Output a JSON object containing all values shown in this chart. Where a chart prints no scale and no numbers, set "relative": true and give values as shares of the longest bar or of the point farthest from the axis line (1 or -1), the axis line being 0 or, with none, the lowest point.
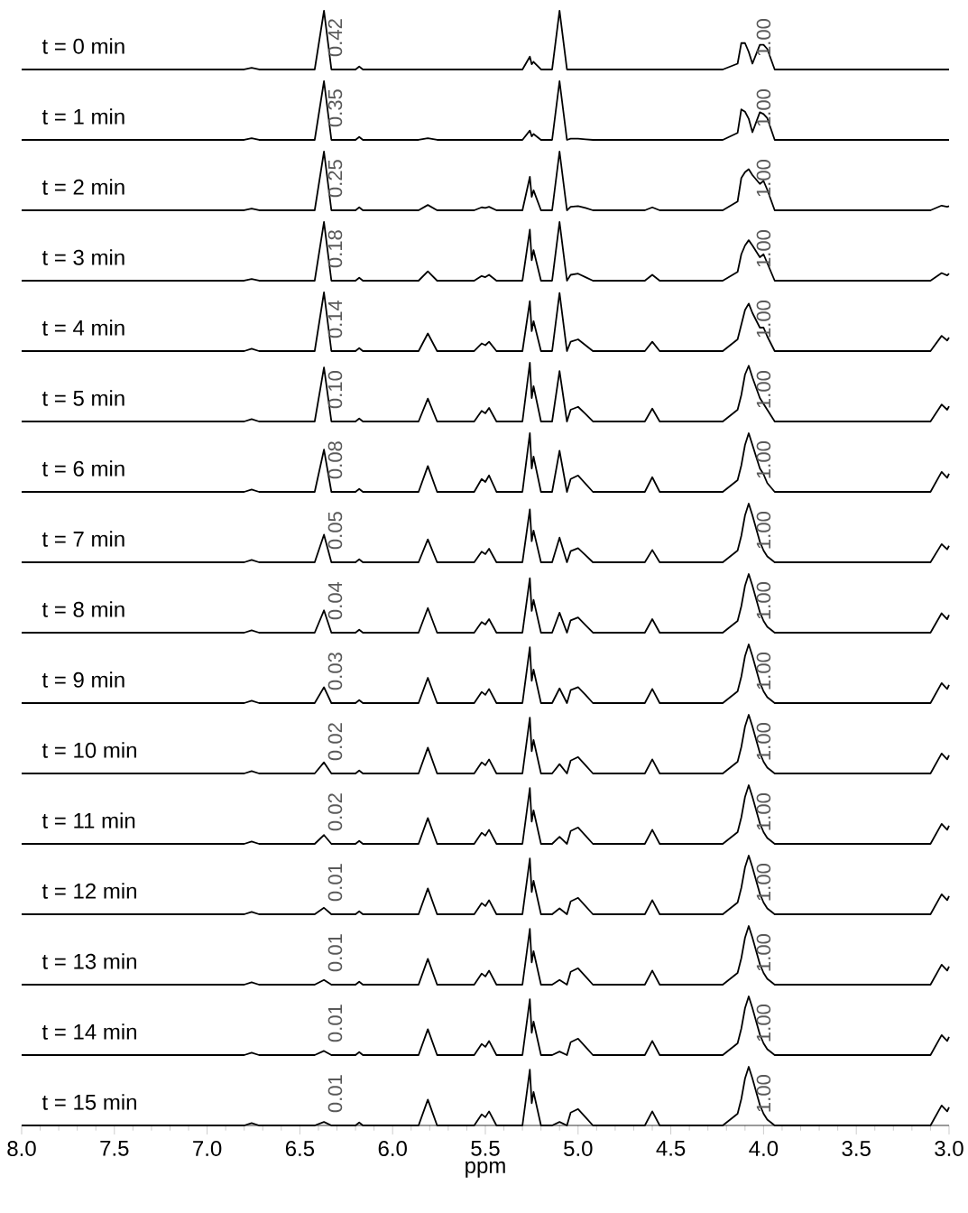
{
  "chart_data": [
    {
      "type": "line",
      "relative": true,
      "tick_labels": false,
      "xlim": [
        8.0,
        3.0
      ],
      "x": [
        8.0,
        6.8,
        6.76,
        6.72,
        6.42,
        6.37,
        6.33,
        6.2,
        6.18,
        6.16,
        5.86,
        5.81,
        5.76,
        5.56,
        5.52,
        5.5,
        5.48,
        5.44,
        5.3,
        5.26,
        5.25,
        5.24,
        5.2,
        5.14,
        5.1,
        5.06,
        5.04,
        5.0,
        4.96,
        4.92,
        4.64,
        4.6,
        4.56,
        4.22,
        4.14,
        4.12,
        4.1,
        4.08,
        4.06,
        4.02,
        4.0,
        3.98,
        3.94,
        3.1,
        3.04,
        3.01,
        3.0
      ],
      "series": [
        {
          "color": "#000000",
          "values": [
            0,
            0,
            0.03,
            0,
            0,
            1,
            0,
            0,
            0.05,
            0,
            0,
            0,
            0,
            0,
            0,
            0,
            0,
            0,
            0,
            0.22,
            0.09,
            0.13,
            0,
            0,
            1,
            0,
            0,
            0,
            0,
            0,
            0,
            0,
            0,
            0,
            0.1,
            0.45,
            0.45,
            0.3,
            0.1,
            0.42,
            0.42,
            0.35,
            0,
            0,
            0,
            0,
            0
          ]
        }
      ],
      "annotations": [
        "t = 0 min",
        "0.42",
        "1.00"
      ]
    },
    {
      "type": "line",
      "relative": true,
      "tick_labels": false,
      "xlim": [
        8.0,
        3.0
      ],
      "x": [
        8.0,
        6.8,
        6.76,
        6.72,
        6.42,
        6.37,
        6.33,
        6.2,
        6.18,
        6.16,
        5.86,
        5.81,
        5.76,
        5.56,
        5.52,
        5.5,
        5.48,
        5.44,
        5.3,
        5.26,
        5.25,
        5.24,
        5.2,
        5.14,
        5.1,
        5.06,
        5.04,
        5.0,
        4.96,
        4.92,
        4.64,
        4.6,
        4.56,
        4.22,
        4.14,
        4.12,
        4.1,
        4.08,
        4.06,
        4.02,
        4.0,
        3.98,
        3.94,
        3.1,
        3.04,
        3.01,
        3.0
      ],
      "series": [
        {
          "color": "#000000",
          "values": [
            0,
            0,
            0.03,
            0,
            0,
            1,
            0,
            0,
            0.05,
            0,
            0,
            0.03,
            0,
            0,
            0,
            0,
            0,
            0,
            0,
            0.16,
            0.06,
            0.1,
            0,
            0,
            1,
            0,
            0.02,
            0.02,
            0.01,
            0,
            0,
            0,
            0,
            0,
            0.12,
            0.52,
            0.48,
            0.36,
            0.13,
            0.47,
            0.44,
            0.37,
            0,
            0,
            0,
            0,
            0
          ]
        }
      ],
      "annotations": [
        "t = 1 min",
        "0.35",
        "1.00"
      ]
    },
    {
      "type": "line",
      "relative": true,
      "tick_labels": false,
      "xlim": [
        8.0,
        3.0
      ],
      "x": [
        8.0,
        6.8,
        6.76,
        6.72,
        6.42,
        6.37,
        6.33,
        6.2,
        6.18,
        6.16,
        5.86,
        5.81,
        5.76,
        5.56,
        5.52,
        5.5,
        5.48,
        5.44,
        5.3,
        5.26,
        5.25,
        5.24,
        5.2,
        5.14,
        5.1,
        5.06,
        5.04,
        5.0,
        4.96,
        4.92,
        4.64,
        4.6,
        4.56,
        4.22,
        4.14,
        4.12,
        4.1,
        4.08,
        4.06,
        4.02,
        4.0,
        3.98,
        3.94,
        3.1,
        3.04,
        3.01,
        3.0
      ],
      "series": [
        {
          "color": "#000000",
          "values": [
            0,
            0,
            0.03,
            0,
            0,
            1,
            0,
            0,
            0.05,
            0,
            0,
            0.09,
            0,
            0,
            0.05,
            0.04,
            0.06,
            0,
            0,
            0.57,
            0.23,
            0.34,
            0,
            0,
            1,
            0,
            0.06,
            0.07,
            0.04,
            0,
            0,
            0.05,
            0,
            0,
            0.15,
            0.55,
            0.65,
            0.7,
            0.6,
            0.45,
            0.5,
            0.35,
            0,
            0,
            0.08,
            0.06,
            0.07
          ]
        }
      ],
      "annotations": [
        "t = 2 min",
        "0.25",
        "1.00"
      ]
    },
    {
      "type": "line",
      "relative": true,
      "tick_labels": false,
      "xlim": [
        8.0,
        3.0
      ],
      "x": [
        8.0,
        6.8,
        6.76,
        6.72,
        6.42,
        6.37,
        6.33,
        6.2,
        6.18,
        6.16,
        5.86,
        5.81,
        5.76,
        5.56,
        5.52,
        5.5,
        5.48,
        5.44,
        5.3,
        5.26,
        5.25,
        5.24,
        5.2,
        5.14,
        5.1,
        5.06,
        5.04,
        5.0,
        4.96,
        4.92,
        4.64,
        4.6,
        4.56,
        4.22,
        4.14,
        4.12,
        4.1,
        4.08,
        4.06,
        4.02,
        4.0,
        3.98,
        3.94,
        3.1,
        3.04,
        3.01,
        3.0
      ],
      "series": [
        {
          "color": "#000000",
          "values": [
            0,
            0,
            0.03,
            0,
            0,
            1,
            0,
            0,
            0.05,
            0,
            0,
            0.16,
            0,
            0,
            0.08,
            0.06,
            0.1,
            0,
            0,
            0.87,
            0.35,
            0.52,
            0,
            0,
            1,
            0,
            0.1,
            0.12,
            0.06,
            0,
            0,
            0.1,
            0,
            0,
            0.15,
            0.45,
            0.6,
            0.69,
            0.6,
            0.4,
            0.45,
            0.3,
            0,
            0,
            0.13,
            0.09,
            0.12
          ]
        }
      ],
      "annotations": [
        "t = 3 min",
        "0.18",
        "1.00"
      ]
    },
    {
      "type": "line",
      "relative": true,
      "tick_labels": false,
      "xlim": [
        8.0,
        3.0
      ],
      "x": [
        8.0,
        6.8,
        6.76,
        6.72,
        6.42,
        6.37,
        6.33,
        6.2,
        6.18,
        6.16,
        5.86,
        5.81,
        5.76,
        5.56,
        5.52,
        5.5,
        5.48,
        5.44,
        5.3,
        5.26,
        5.25,
        5.24,
        5.2,
        5.14,
        5.1,
        5.06,
        5.04,
        5.0,
        4.96,
        4.92,
        4.64,
        4.6,
        4.56,
        4.22,
        4.14,
        4.12,
        4.1,
        4.08,
        4.06,
        4.02,
        4.0,
        3.98,
        3.94,
        3.1,
        3.04,
        3.01,
        3.0
      ],
      "series": [
        {
          "color": "#000000",
          "values": [
            0,
            0,
            0.04,
            0,
            0,
            1,
            0,
            0,
            0.05,
            0,
            0,
            0.3,
            0,
            0,
            0.13,
            0.1,
            0.16,
            0,
            0,
            0.85,
            0.34,
            0.51,
            0,
            0,
            0.99,
            0,
            0.16,
            0.2,
            0.1,
            0,
            0,
            0.16,
            0,
            0,
            0.2,
            0.45,
            0.7,
            0.81,
            0.65,
            0.4,
            0.4,
            0.25,
            0,
            0,
            0.26,
            0.18,
            0.23
          ]
        }
      ],
      "annotations": [
        "t = 4 min",
        "0.14",
        "1.00"
      ]
    },
    {
      "type": "line",
      "relative": true,
      "tick_labels": false,
      "xlim": [
        8.0,
        3.0
      ],
      "x": [
        8.0,
        6.8,
        6.76,
        6.72,
        6.42,
        6.37,
        6.33,
        6.2,
        6.18,
        6.16,
        5.86,
        5.81,
        5.76,
        5.56,
        5.52,
        5.5,
        5.48,
        5.44,
        5.3,
        5.26,
        5.25,
        5.24,
        5.2,
        5.14,
        5.1,
        5.06,
        5.04,
        5.0,
        4.96,
        4.92,
        4.64,
        4.6,
        4.56,
        4.22,
        4.14,
        4.12,
        4.1,
        4.08,
        4.06,
        4.02,
        4.0,
        3.98,
        3.94,
        3.1,
        3.04,
        3.01,
        3.0
      ],
      "series": [
        {
          "color": "#000000",
          "values": [
            0,
            0,
            0.04,
            0,
            0,
            0.92,
            0,
            0,
            0.05,
            0,
            0,
            0.39,
            0,
            0,
            0.18,
            0.14,
            0.23,
            0,
            0,
            1,
            0.4,
            0.6,
            0,
            0,
            0.86,
            0,
            0.2,
            0.25,
            0.13,
            0,
            0,
            0.22,
            0,
            0,
            0.2,
            0.45,
            0.8,
            0.95,
            0.75,
            0.4,
            0.3,
            0.2,
            0,
            0,
            0.29,
            0.2,
            0.26
          ]
        }
      ],
      "annotations": [
        "t = 5 min",
        "0.10",
        "1.00"
      ]
    },
    {
      "type": "line",
      "relative": true,
      "tick_labels": false,
      "xlim": [
        8.0,
        3.0
      ],
      "x": [
        8.0,
        6.8,
        6.76,
        6.72,
        6.42,
        6.37,
        6.33,
        6.2,
        6.18,
        6.16,
        5.86,
        5.81,
        5.76,
        5.56,
        5.52,
        5.5,
        5.48,
        5.44,
        5.3,
        5.26,
        5.25,
        5.24,
        5.2,
        5.14,
        5.1,
        5.06,
        5.04,
        5.0,
        4.96,
        4.92,
        4.64,
        4.6,
        4.56,
        4.22,
        4.14,
        4.12,
        4.1,
        4.08,
        4.06,
        4.02,
        4.0,
        3.98,
        3.94,
        3.1,
        3.04,
        3.01,
        3.0
      ],
      "series": [
        {
          "color": "#000000",
          "values": [
            0,
            0,
            0.04,
            0,
            0,
            0.72,
            0,
            0,
            0.05,
            0,
            0,
            0.44,
            0,
            0,
            0.22,
            0.17,
            0.28,
            0,
            0,
            1,
            0.4,
            0.6,
            0,
            0,
            0.7,
            0,
            0.22,
            0.28,
            0.14,
            0,
            0,
            0.25,
            0,
            0,
            0.2,
            0.45,
            0.8,
            1,
            0.8,
            0.4,
            0.3,
            0.15,
            0,
            0,
            0.34,
            0.24,
            0.31
          ]
        }
      ],
      "annotations": [
        "t = 6 min",
        "0.08",
        "1.00"
      ]
    },
    {
      "type": "line",
      "relative": true,
      "tick_labels": false,
      "xlim": [
        8.0,
        3.0
      ],
      "x": [
        8.0,
        6.8,
        6.76,
        6.72,
        6.42,
        6.37,
        6.33,
        6.2,
        6.18,
        6.16,
        5.86,
        5.81,
        5.76,
        5.56,
        5.52,
        5.5,
        5.48,
        5.44,
        5.3,
        5.26,
        5.25,
        5.24,
        5.2,
        5.14,
        5.1,
        5.06,
        5.04,
        5.0,
        4.96,
        4.92,
        4.64,
        4.6,
        4.56,
        4.22,
        4.14,
        4.12,
        4.1,
        4.08,
        4.06,
        4.02,
        4.0,
        3.98,
        3.94,
        3.1,
        3.04,
        3.01,
        3.0
      ],
      "series": [
        {
          "color": "#000000",
          "values": [
            0,
            0,
            0.04,
            0,
            0,
            0.47,
            0,
            0,
            0.05,
            0,
            0,
            0.39,
            0,
            0,
            0.18,
            0.14,
            0.23,
            0,
            0,
            0.9,
            0.36,
            0.54,
            0,
            0,
            0.42,
            0,
            0.19,
            0.24,
            0.12,
            0,
            0,
            0.21,
            0,
            0,
            0.2,
            0.45,
            0.8,
            1,
            0.8,
            0.35,
            0.2,
            0.1,
            0,
            0,
            0.31,
            0.22,
            0.28
          ]
        }
      ],
      "annotations": [
        "t = 7 min",
        "0.05",
        "1.00"
      ]
    },
    {
      "type": "line",
      "relative": true,
      "tick_labels": false,
      "xlim": [
        8.0,
        3.0
      ],
      "x": [
        8.0,
        6.8,
        6.76,
        6.72,
        6.42,
        6.37,
        6.33,
        6.2,
        6.18,
        6.16,
        5.86,
        5.81,
        5.76,
        5.56,
        5.52,
        5.5,
        5.48,
        5.44,
        5.3,
        5.26,
        5.25,
        5.24,
        5.2,
        5.14,
        5.1,
        5.06,
        5.04,
        5.0,
        4.96,
        4.92,
        4.64,
        4.6,
        4.56,
        4.22,
        4.14,
        4.12,
        4.1,
        4.08,
        4.06,
        4.02,
        4.0,
        3.98,
        3.94,
        3.1,
        3.04,
        3.01,
        3.0
      ],
      "series": [
        {
          "color": "#000000",
          "values": [
            0,
            0,
            0.04,
            0,
            0,
            0.38,
            0,
            0,
            0.05,
            0,
            0,
            0.42,
            0,
            0,
            0.18,
            0.14,
            0.23,
            0,
            0,
            0.93,
            0.37,
            0.56,
            0,
            0,
            0.34,
            0,
            0.21,
            0.26,
            0.13,
            0,
            0,
            0.23,
            0,
            0,
            0.2,
            0.45,
            0.8,
            1,
            0.8,
            0.35,
            0.2,
            0.1,
            0,
            0,
            0.33,
            0.23,
            0.3
          ]
        }
      ],
      "annotations": [
        "t = 8 min",
        "0.04",
        "1.00"
      ]
    },
    {
      "type": "line",
      "relative": true,
      "tick_labels": false,
      "xlim": [
        8.0,
        3.0
      ],
      "x": [
        8.0,
        6.8,
        6.76,
        6.72,
        6.42,
        6.37,
        6.33,
        6.2,
        6.18,
        6.16,
        5.86,
        5.81,
        5.76,
        5.56,
        5.52,
        5.5,
        5.48,
        5.44,
        5.3,
        5.26,
        5.25,
        5.24,
        5.2,
        5.14,
        5.1,
        5.06,
        5.04,
        5.0,
        4.96,
        4.92,
        4.64,
        4.6,
        4.56,
        4.22,
        4.14,
        4.12,
        4.1,
        4.08,
        4.06,
        4.02,
        4.0,
        3.98,
        3.94,
        3.1,
        3.04,
        3.01,
        3.0
      ],
      "series": [
        {
          "color": "#000000",
          "values": [
            0,
            0,
            0.04,
            0,
            0,
            0.27,
            0,
            0,
            0.05,
            0,
            0,
            0.43,
            0,
            0,
            0.19,
            0.14,
            0.24,
            0,
            0,
            0.95,
            0.38,
            0.57,
            0,
            0,
            0.25,
            0,
            0.22,
            0.27,
            0.14,
            0,
            0,
            0.24,
            0,
            0,
            0.2,
            0.45,
            0.8,
            1,
            0.8,
            0.35,
            0.2,
            0.1,
            0,
            0,
            0.34,
            0.24,
            0.31
          ]
        }
      ],
      "annotations": [
        "t = 9 min",
        "0.03",
        "1.00"
      ]
    },
    {
      "type": "line",
      "relative": true,
      "tick_labels": false,
      "xlim": [
        8.0,
        3.0
      ],
      "x": [
        8.0,
        6.8,
        6.76,
        6.72,
        6.42,
        6.37,
        6.33,
        6.2,
        6.18,
        6.16,
        5.86,
        5.81,
        5.76,
        5.56,
        5.52,
        5.5,
        5.48,
        5.44,
        5.3,
        5.26,
        5.25,
        5.24,
        5.2,
        5.14,
        5.1,
        5.06,
        5.04,
        5.0,
        4.96,
        4.92,
        4.64,
        4.6,
        4.56,
        4.22,
        4.14,
        4.12,
        4.1,
        4.08,
        4.06,
        4.02,
        4.0,
        3.98,
        3.94,
        3.1,
        3.04,
        3.01,
        3.0
      ],
      "series": [
        {
          "color": "#000000",
          "values": [
            0,
            0,
            0.04,
            0,
            0,
            0.19,
            0,
            0,
            0.05,
            0,
            0,
            0.44,
            0,
            0,
            0.19,
            0.14,
            0.24,
            0,
            0,
            0.95,
            0.38,
            0.57,
            0,
            0,
            0.16,
            0,
            0.22,
            0.28,
            0.14,
            0,
            0,
            0.24,
            0,
            0,
            0.2,
            0.45,
            0.8,
            1,
            0.8,
            0.35,
            0.2,
            0.1,
            0,
            0,
            0.34,
            0.24,
            0.31
          ]
        }
      ],
      "annotations": [
        "t = 10 min",
        "0.02",
        "1.00"
      ]
    },
    {
      "type": "line",
      "relative": true,
      "tick_labels": false,
      "xlim": [
        8.0,
        3.0
      ],
      "x": [
        8.0,
        6.8,
        6.76,
        6.72,
        6.42,
        6.37,
        6.33,
        6.2,
        6.18,
        6.16,
        5.86,
        5.81,
        5.76,
        5.56,
        5.52,
        5.5,
        5.48,
        5.44,
        5.3,
        5.26,
        5.25,
        5.24,
        5.2,
        5.14,
        5.1,
        5.06,
        5.04,
        5.0,
        4.96,
        4.92,
        4.64,
        4.6,
        4.56,
        4.22,
        4.14,
        4.12,
        4.1,
        4.08,
        4.06,
        4.02,
        4.0,
        3.98,
        3.94,
        3.1,
        3.04,
        3.01,
        3.0
      ],
      "series": [
        {
          "color": "#000000",
          "values": [
            0,
            0,
            0.04,
            0,
            0,
            0.15,
            0,
            0,
            0.05,
            0,
            0,
            0.44,
            0,
            0,
            0.19,
            0.14,
            0.24,
            0,
            0,
            0.95,
            0.38,
            0.57,
            0,
            0,
            0.12,
            0,
            0.22,
            0.28,
            0.14,
            0,
            0,
            0.24,
            0,
            0,
            0.2,
            0.45,
            0.8,
            1,
            0.8,
            0.35,
            0.2,
            0.1,
            0,
            0,
            0.34,
            0.24,
            0.31
          ]
        }
      ],
      "annotations": [
        "t = 11 min",
        "0.02",
        "1.00"
      ]
    },
    {
      "type": "line",
      "relative": true,
      "tick_labels": false,
      "xlim": [
        8.0,
        3.0
      ],
      "x": [
        8.0,
        6.8,
        6.76,
        6.72,
        6.42,
        6.37,
        6.33,
        6.2,
        6.18,
        6.16,
        5.86,
        5.81,
        5.76,
        5.56,
        5.52,
        5.5,
        5.48,
        5.44,
        5.3,
        5.26,
        5.25,
        5.24,
        5.2,
        5.14,
        5.1,
        5.06,
        5.04,
        5.0,
        4.96,
        4.92,
        4.64,
        4.6,
        4.56,
        4.22,
        4.14,
        4.12,
        4.1,
        4.08,
        4.06,
        4.02,
        4.0,
        3.98,
        3.94,
        3.1,
        3.04,
        3.01,
        3.0
      ],
      "series": [
        {
          "color": "#000000",
          "values": [
            0,
            0,
            0.04,
            0,
            0,
            0.11,
            0,
            0,
            0.05,
            0,
            0,
            0.44,
            0,
            0,
            0.19,
            0.14,
            0.24,
            0,
            0,
            0.95,
            0.38,
            0.57,
            0,
            0,
            0.1,
            0,
            0.22,
            0.28,
            0.14,
            0,
            0,
            0.24,
            0,
            0,
            0.2,
            0.45,
            0.8,
            1,
            0.8,
            0.35,
            0.2,
            0.1,
            0,
            0,
            0.34,
            0.24,
            0.31
          ]
        }
      ],
      "annotations": [
        "t = 12 min",
        "0.01",
        "1.00"
      ]
    },
    {
      "type": "line",
      "relative": true,
      "tick_labels": false,
      "xlim": [
        8.0,
        3.0
      ],
      "x": [
        8.0,
        6.8,
        6.76,
        6.72,
        6.42,
        6.37,
        6.33,
        6.2,
        6.18,
        6.16,
        5.86,
        5.81,
        5.76,
        5.56,
        5.52,
        5.5,
        5.48,
        5.44,
        5.3,
        5.26,
        5.25,
        5.24,
        5.2,
        5.14,
        5.1,
        5.06,
        5.04,
        5.0,
        4.96,
        4.92,
        4.64,
        4.6,
        4.56,
        4.22,
        4.14,
        4.12,
        4.1,
        4.08,
        4.06,
        4.02,
        4.0,
        3.98,
        3.94,
        3.1,
        3.04,
        3.01,
        3.0
      ],
      "series": [
        {
          "color": "#000000",
          "values": [
            0,
            0,
            0.04,
            0,
            0,
            0.08,
            0,
            0,
            0.05,
            0,
            0,
            0.44,
            0,
            0,
            0.19,
            0.14,
            0.24,
            0,
            0,
            0.95,
            0.38,
            0.57,
            0,
            0,
            0.08,
            0,
            0.22,
            0.28,
            0.14,
            0,
            0,
            0.24,
            0,
            0,
            0.2,
            0.45,
            0.8,
            1,
            0.8,
            0.35,
            0.2,
            0.1,
            0,
            0,
            0.34,
            0.24,
            0.31
          ]
        }
      ],
      "annotations": [
        "t = 13 min",
        "0.01",
        "1.00"
      ]
    },
    {
      "type": "line",
      "relative": true,
      "tick_labels": false,
      "xlim": [
        8.0,
        3.0
      ],
      "x": [
        8.0,
        6.8,
        6.76,
        6.72,
        6.42,
        6.37,
        6.33,
        6.2,
        6.18,
        6.16,
        5.86,
        5.81,
        5.76,
        5.56,
        5.52,
        5.5,
        5.48,
        5.44,
        5.3,
        5.26,
        5.25,
        5.24,
        5.2,
        5.14,
        5.1,
        5.06,
        5.04,
        5.0,
        4.96,
        4.92,
        4.64,
        4.6,
        4.56,
        4.22,
        4.14,
        4.12,
        4.1,
        4.08,
        4.06,
        4.02,
        4.0,
        3.98,
        3.94,
        3.1,
        3.04,
        3.01,
        3.0
      ],
      "series": [
        {
          "color": "#000000",
          "values": [
            0,
            0,
            0.04,
            0,
            0,
            0.07,
            0,
            0,
            0.05,
            0,
            0,
            0.44,
            0,
            0,
            0.19,
            0.14,
            0.24,
            0,
            0,
            0.95,
            0.38,
            0.57,
            0,
            0,
            0.06,
            0,
            0.22,
            0.28,
            0.14,
            0,
            0,
            0.24,
            0,
            0,
            0.2,
            0.45,
            0.8,
            1,
            0.8,
            0.35,
            0.2,
            0.1,
            0,
            0,
            0.34,
            0.24,
            0.31
          ]
        }
      ],
      "annotations": [
        "t = 14 min",
        "0.01",
        "1.00"
      ]
    },
    {
      "type": "line",
      "relative": true,
      "tick_labels": "x",
      "xlim": [
        8.0,
        3.0
      ],
      "xlabel": "ppm",
      "xticks": [
        {
          "value": 8.0,
          "label": "8.0"
        },
        {
          "value": 7.5,
          "label": "7.5"
        },
        {
          "value": 7.0,
          "label": "7.0"
        },
        {
          "value": 6.5,
          "label": "6.5"
        },
        {
          "value": 6.0,
          "label": "6.0"
        },
        {
          "value": 5.5,
          "label": "5.5"
        },
        {
          "value": 5.0,
          "label": "5.0"
        },
        {
          "value": 4.5,
          "label": "4.5"
        },
        {
          "value": 4.0,
          "label": "4.0"
        },
        {
          "value": 3.5,
          "label": "3.5"
        },
        {
          "value": 3.0,
          "label": "3.0"
        }
      ],
      "x": [
        8.0,
        6.8,
        6.76,
        6.72,
        6.42,
        6.37,
        6.33,
        6.2,
        6.18,
        6.16,
        5.86,
        5.81,
        5.76,
        5.56,
        5.52,
        5.5,
        5.48,
        5.44,
        5.3,
        5.26,
        5.25,
        5.24,
        5.2,
        5.14,
        5.1,
        5.06,
        5.04,
        5.0,
        4.96,
        4.92,
        4.64,
        4.6,
        4.56,
        4.22,
        4.14,
        4.12,
        4.1,
        4.08,
        4.06,
        4.02,
        4.0,
        3.98,
        3.94,
        3.1,
        3.04,
        3.01,
        3.0
      ],
      "series": [
        {
          "color": "#000000",
          "values": [
            0,
            0,
            0.04,
            0,
            0,
            0.06,
            0,
            0,
            0.05,
            0,
            0,
            0.44,
            0,
            0,
            0.19,
            0.14,
            0.24,
            0,
            0,
            0.95,
            0.38,
            0.57,
            0,
            0,
            0.06,
            0,
            0.22,
            0.28,
            0.14,
            0,
            0,
            0.24,
            0,
            0,
            0.2,
            0.45,
            0.8,
            1,
            0.8,
            0.35,
            0.2,
            0.1,
            0,
            0,
            0.34,
            0.24,
            0.31
          ]
        }
      ],
      "annotations": [
        "t = 15 min",
        "0.01",
        "1.00"
      ]
    }
  ]
}
